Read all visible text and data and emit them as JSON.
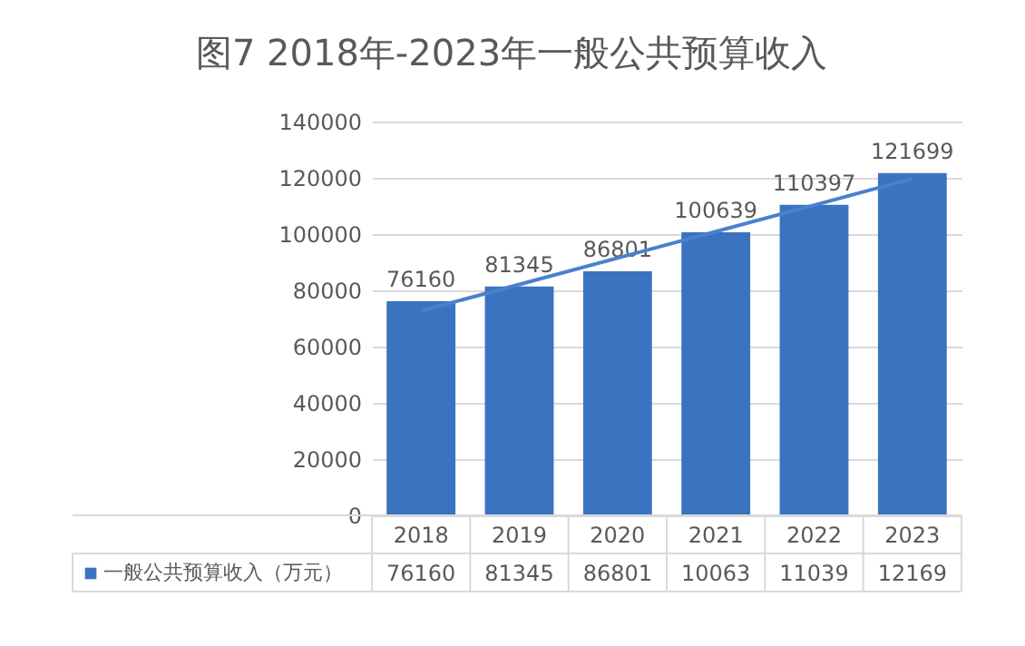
{
  "chart_data": {
    "type": "bar",
    "title": "图7 2018年-2023年一般公共预算收入",
    "categories": [
      "2018",
      "2019",
      "2020",
      "2021",
      "2022",
      "2023"
    ],
    "series": [
      {
        "name": "一般公共预算收入（万元）",
        "color": "#3a73c0",
        "values": [
          76160,
          81345,
          86801,
          100639,
          110397,
          121699
        ]
      },
      {
        "type": "line",
        "color": "#4a80cc",
        "values": [
          72700,
          82100,
          91500,
          100900,
          110300,
          119700
        ],
        "value_labels": [
          null,
          null,
          null,
          null,
          null,
          null
        ]
      }
    ],
    "data_labels": true,
    "annotations": [
      "76160",
      "81345",
      "86801",
      "10063",
      "11039",
      "12169"
    ],
    "ylim": [
      0,
      140000
    ],
    "yticks": [
      0,
      20000,
      40000,
      60000,
      80000,
      100000,
      120000,
      140000
    ],
    "grid": "y",
    "legend": "bottom"
  }
}
